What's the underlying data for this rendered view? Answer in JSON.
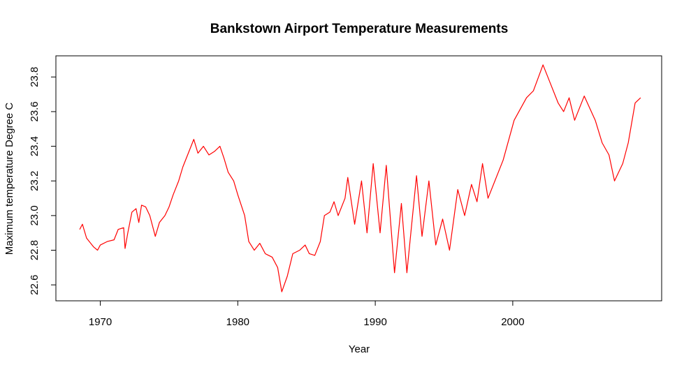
{
  "chart_data": {
    "type": "line",
    "title": "Bankstown Airport Temperature Measurements",
    "xlabel": "Year",
    "ylabel": "Maximum temperature Degree C",
    "color": "#ff0000",
    "x": [
      1968.5,
      1968.7,
      1969.0,
      1969.5,
      1969.8,
      1970.0,
      1970.5,
      1971.0,
      1971.3,
      1971.7,
      1971.8,
      1972.0,
      1972.3,
      1972.6,
      1972.8,
      1973.0,
      1973.3,
      1973.6,
      1974.0,
      1974.3,
      1974.7,
      1975.0,
      1975.3,
      1975.7,
      1976.0,
      1976.3,
      1976.8,
      1977.1,
      1977.5,
      1977.9,
      1978.3,
      1978.7,
      1979.0,
      1979.3,
      1979.7,
      1980.0,
      1980.5,
      1980.8,
      1981.2,
      1981.6,
      1982.0,
      1982.5,
      1982.9,
      1983.2,
      1983.6,
      1984.0,
      1984.5,
      1984.9,
      1985.2,
      1985.6,
      1986.0,
      1986.3,
      1986.7,
      1987.0,
      1987.3,
      1987.8,
      1988.0,
      1988.5,
      1989.0,
      1989.4,
      1989.85,
      1990.35,
      1990.8,
      1991.4,
      1991.9,
      1992.3,
      1993.0,
      1993.4,
      1993.9,
      1994.4,
      1994.9,
      1995.4,
      1996.0,
      1996.5,
      1997.0,
      1997.4,
      1997.8,
      1998.2,
      1998.7,
      1999.3,
      2000.1,
      2001.0,
      2001.5,
      2002.2,
      2002.8,
      2003.3,
      2003.7,
      2004.1,
      2004.5,
      2005.2,
      2006.0,
      2006.5,
      2007.0,
      2007.4,
      2008.0,
      2008.4,
      2008.9,
      2009.3
    ],
    "values": [
      22.92,
      22.95,
      22.87,
      22.82,
      22.8,
      22.83,
      22.85,
      22.86,
      22.92,
      22.93,
      22.81,
      22.9,
      23.02,
      23.04,
      22.96,
      23.06,
      23.05,
      23.0,
      22.88,
      22.96,
      23.0,
      23.05,
      23.12,
      23.2,
      23.28,
      23.34,
      23.44,
      23.36,
      23.4,
      23.35,
      23.37,
      23.4,
      23.33,
      23.25,
      23.2,
      23.12,
      23.0,
      22.85,
      22.8,
      22.84,
      22.78,
      22.76,
      22.7,
      22.56,
      22.65,
      22.78,
      22.8,
      22.83,
      22.78,
      22.77,
      22.85,
      23.0,
      23.02,
      23.08,
      23.0,
      23.1,
      23.22,
      22.95,
      23.2,
      22.9,
      23.3,
      22.9,
      23.29,
      22.67,
      23.07,
      22.67,
      23.23,
      22.88,
      23.2,
      22.83,
      22.98,
      22.8,
      23.15,
      23.0,
      23.18,
      23.08,
      23.3,
      23.1,
      23.2,
      23.32,
      23.55,
      23.68,
      23.72,
      23.87,
      23.75,
      23.65,
      23.6,
      23.68,
      23.55,
      23.69,
      23.55,
      23.42,
      23.35,
      23.2,
      23.3,
      23.42,
      23.65,
      23.68
    ],
    "xlim": [
      1966.77,
      2010.83
    ],
    "ylim": [
      22.508,
      23.922
    ],
    "xticks": [
      1970,
      1980,
      1990,
      2000
    ],
    "yticks": [
      22.6,
      22.8,
      {
        "value": 23,
        "label": "23.0"
      },
      23.2,
      23.4,
      23.6,
      23.8
    ]
  }
}
